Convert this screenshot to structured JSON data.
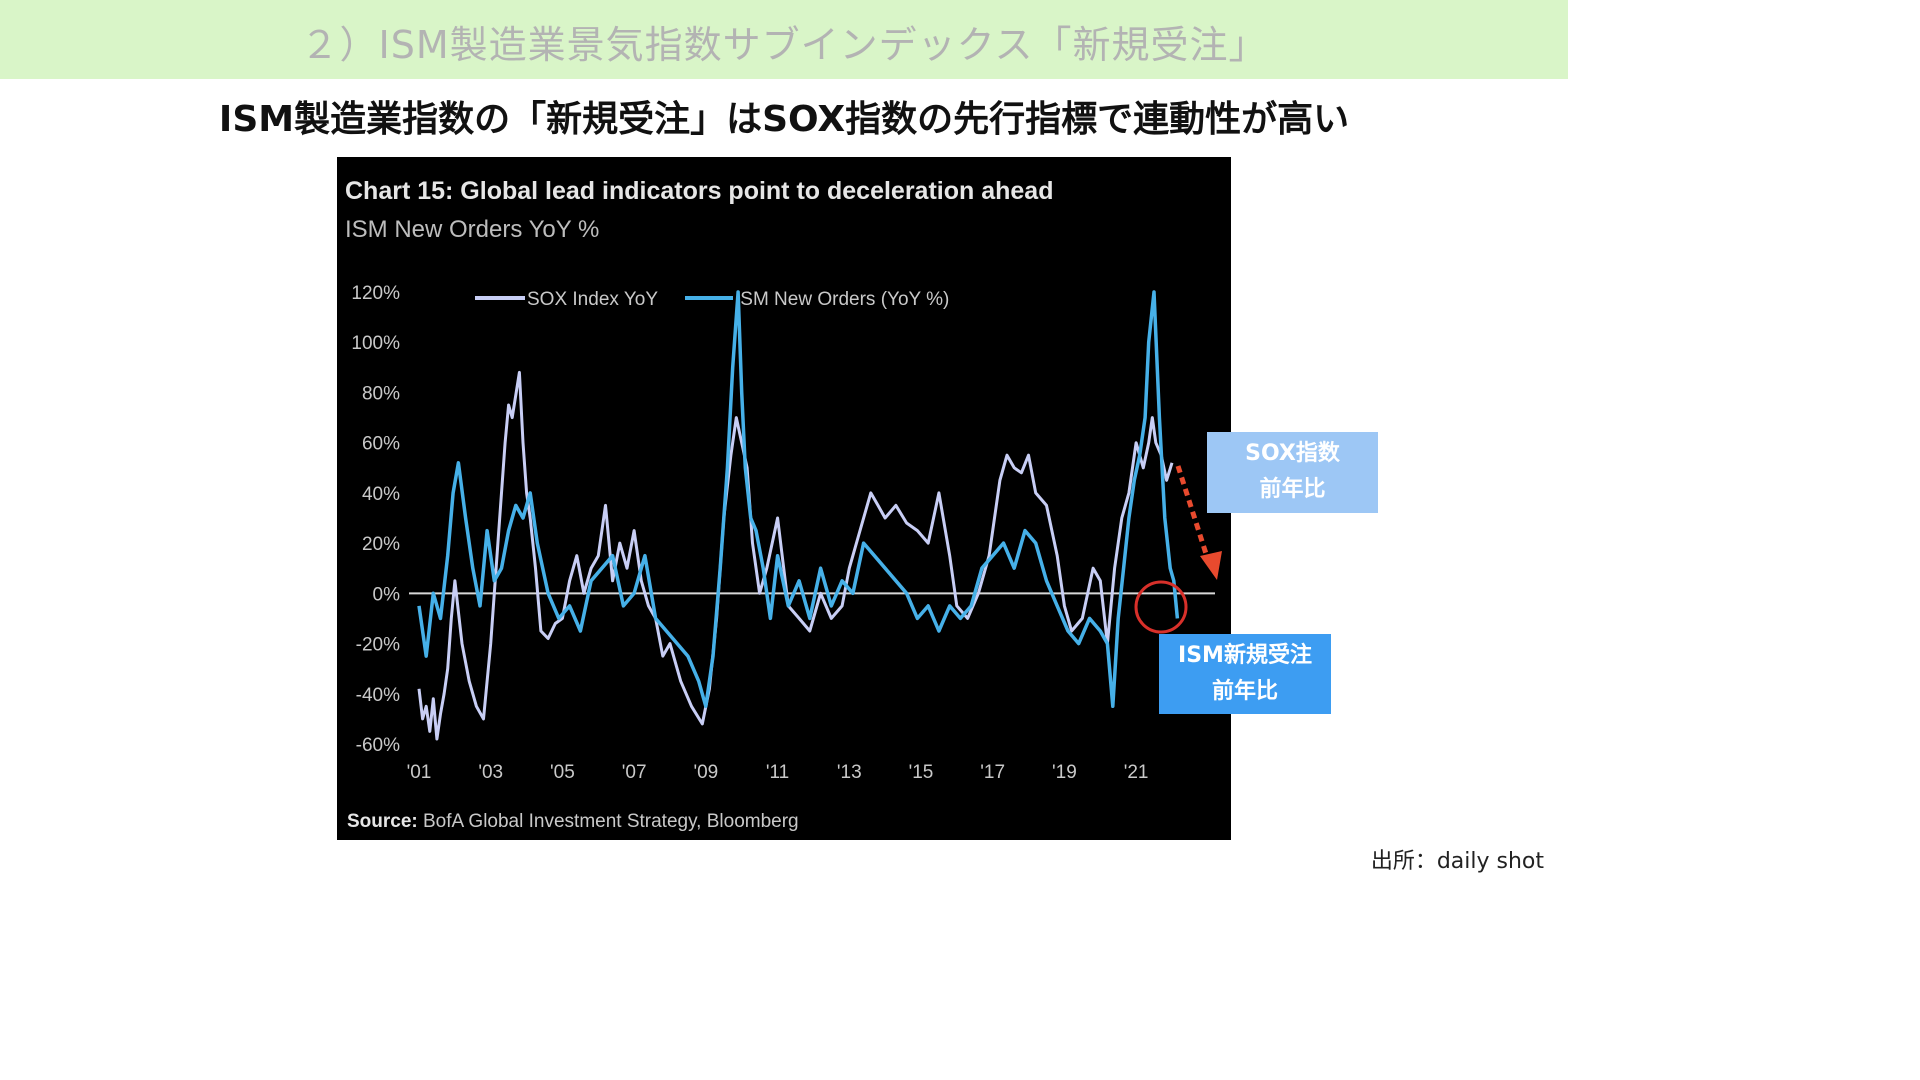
{
  "section_title": "２）ISM製造業景気指数サブインデックス「新規受注」",
  "headline": "ISM製造業指数の「新規受注」はSOX指数の先行指標で連動性が高い",
  "credit": "出所：daily shot",
  "callouts": {
    "sox": [
      "SOX指数",
      "前年比"
    ],
    "ism": [
      "ISM新規受注",
      "前年比"
    ]
  },
  "colors": {
    "sox_line": "#c8cef5",
    "ism_line": "#46b0e8",
    "callout_sox": "#9dc7f5",
    "callout_ism": "#3d9df2",
    "arrow": "#e84a2e",
    "top_band": "#d9f5c8"
  },
  "chart_data": {
    "type": "line",
    "title": "Chart 15: Global lead indicators point to deceleration ahead",
    "subtitle": "ISM New Orders YoY %",
    "source_label": "Source:",
    "source_text": "BofA Global Investment Strategy, Bloomberg",
    "x_tick_labels": [
      "'01",
      "'03",
      "'05",
      "'07",
      "'09",
      "'11",
      "'13",
      "'15",
      "'17",
      "'19",
      "'21"
    ],
    "x_tick_years": [
      2001,
      2003,
      2005,
      2007,
      2009,
      2011,
      2013,
      2015,
      2017,
      2019,
      2021
    ],
    "x_range": [
      2001,
      2023.2
    ],
    "y_tick_labels": [
      "120%",
      "100%",
      "80%",
      "60%",
      "40%",
      "20%",
      "0%",
      "-20%",
      "-40%",
      "-60%"
    ],
    "y_ticks": [
      120,
      100,
      80,
      60,
      40,
      20,
      0,
      -20,
      -40,
      -60
    ],
    "ylim": [
      -60,
      120
    ],
    "legend_position": "top",
    "series": [
      {
        "name": "SOX Index YoY",
        "x": [
          2001.0,
          2001.1,
          2001.2,
          2001.3,
          2001.4,
          2001.5,
          2001.6,
          2001.7,
          2001.8,
          2001.9,
          2002.0,
          2002.2,
          2002.4,
          2002.6,
          2002.8,
          2003.0,
          2003.2,
          2003.4,
          2003.5,
          2003.6,
          2003.8,
          2003.9,
          2004.0,
          2004.1,
          2004.25,
          2004.4,
          2004.6,
          2004.8,
          2005.0,
          2005.2,
          2005.4,
          2005.6,
          2005.8,
          2006.0,
          2006.2,
          2006.4,
          2006.6,
          2006.8,
          2007.0,
          2007.2,
          2007.4,
          2007.6,
          2007.8,
          2008.0,
          2008.3,
          2008.6,
          2008.9,
          2009.1,
          2009.3,
          2009.5,
          2009.7,
          2009.85,
          2010.0,
          2010.15,
          2010.3,
          2010.5,
          2010.7,
          2011.0,
          2011.3,
          2011.6,
          2011.9,
          2012.2,
          2012.5,
          2012.8,
          2013.0,
          2013.3,
          2013.6,
          2013.8,
          2014.0,
          2014.3,
          2014.6,
          2014.9,
          2015.2,
          2015.5,
          2015.8,
          2016.0,
          2016.3,
          2016.6,
          2016.9,
          2017.0,
          2017.2,
          2017.4,
          2017.6,
          2017.8,
          2018.0,
          2018.2,
          2018.5,
          2018.8,
          2019.0,
          2019.2,
          2019.5,
          2019.8,
          2020.0,
          2020.2,
          2020.4,
          2020.6,
          2020.8,
          2021.0,
          2021.2,
          2021.35,
          2021.45,
          2021.55,
          2021.7,
          2021.85,
          2022.0
        ],
        "values": [
          -38,
          -50,
          -45,
          -55,
          -42,
          -58,
          -48,
          -40,
          -30,
          -10,
          5,
          -20,
          -35,
          -45,
          -50,
          -20,
          20,
          60,
          75,
          70,
          88,
          60,
          40,
          30,
          10,
          -15,
          -18,
          -12,
          -10,
          5,
          15,
          0,
          10,
          15,
          35,
          5,
          20,
          10,
          25,
          5,
          -5,
          -10,
          -25,
          -20,
          -35,
          -45,
          -52,
          -38,
          -10,
          30,
          55,
          70,
          60,
          50,
          20,
          0,
          10,
          30,
          -5,
          -10,
          -15,
          0,
          -10,
          -5,
          10,
          25,
          40,
          35,
          30,
          35,
          28,
          25,
          20,
          40,
          15,
          -5,
          -10,
          0,
          15,
          25,
          45,
          55,
          50,
          48,
          55,
          40,
          35,
          15,
          -5,
          -15,
          -10,
          10,
          5,
          -20,
          10,
          30,
          40,
          60,
          50,
          60,
          70,
          60,
          55,
          45,
          52
        ],
        "color_key": "sox_line"
      },
      {
        "name": "ISM New Orders (YoY %)",
        "x": [
          2001.0,
          2001.2,
          2001.4,
          2001.6,
          2001.8,
          2001.95,
          2002.1,
          2002.3,
          2002.5,
          2002.7,
          2002.9,
          2003.1,
          2003.3,
          2003.5,
          2003.7,
          2003.9,
          2004.1,
          2004.3,
          2004.6,
          2004.9,
          2005.2,
          2005.5,
          2005.8,
          2006.1,
          2006.4,
          2006.7,
          2007.0,
          2007.3,
          2007.6,
          2007.9,
          2008.2,
          2008.5,
          2008.8,
          2009.0,
          2009.2,
          2009.4,
          2009.6,
          2009.75,
          2009.9,
          2010.0,
          2010.1,
          2010.25,
          2010.4,
          2010.6,
          2010.8,
          2011.0,
          2011.3,
          2011.6,
          2011.9,
          2012.2,
          2012.5,
          2012.8,
          2013.1,
          2013.4,
          2013.7,
          2014.0,
          2014.3,
          2014.6,
          2014.9,
          2015.2,
          2015.5,
          2015.8,
          2016.1,
          2016.4,
          2016.7,
          2017.0,
          2017.3,
          2017.6,
          2017.9,
          2018.2,
          2018.5,
          2018.8,
          2019.1,
          2019.4,
          2019.7,
          2020.0,
          2020.2,
          2020.35,
          2020.5,
          2020.65,
          2020.8,
          2020.95,
          2021.1,
          2021.25,
          2021.35,
          2021.5,
          2021.65,
          2021.8,
          2021.95,
          2022.05,
          2022.15
        ],
        "values": [
          -5,
          -25,
          0,
          -10,
          15,
          40,
          52,
          30,
          10,
          -5,
          25,
          5,
          10,
          25,
          35,
          30,
          40,
          20,
          0,
          -10,
          -5,
          -15,
          5,
          10,
          15,
          -5,
          0,
          15,
          -10,
          -15,
          -20,
          -25,
          -35,
          -45,
          -25,
          10,
          50,
          90,
          120,
          80,
          50,
          30,
          25,
          10,
          -10,
          15,
          -5,
          5,
          -10,
          10,
          -5,
          5,
          0,
          20,
          15,
          10,
          5,
          0,
          -10,
          -5,
          -15,
          -5,
          -10,
          -5,
          10,
          15,
          20,
          10,
          25,
          20,
          5,
          -5,
          -15,
          -20,
          -10,
          -15,
          -20,
          -45,
          -10,
          10,
          30,
          45,
          55,
          70,
          100,
          120,
          70,
          30,
          10,
          5,
          -10
        ],
        "color_key": "ism_line"
      }
    ]
  }
}
